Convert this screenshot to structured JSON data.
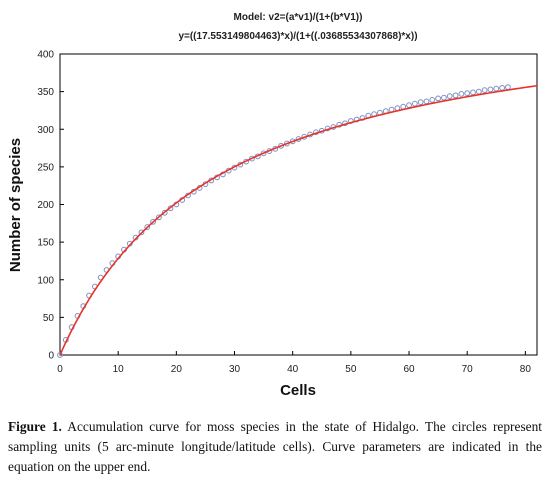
{
  "chart_data": {
    "type": "scatter",
    "title": "Model: v2=(a*v1)/(1+(b*V1))",
    "subtitle": "y=((17.553149804463)*x)/(1+((.03685534307868)*x))",
    "xlabel": "Cells",
    "ylabel": "Number of species",
    "xlim": [
      0,
      82
    ],
    "ylim": [
      0,
      400
    ],
    "xticks": [
      "0",
      "10",
      "20",
      "30",
      "40",
      "50",
      "60",
      "70",
      "80"
    ],
    "yticks": [
      "0",
      "50",
      "100",
      "150",
      "200",
      "250",
      "300",
      "350",
      "400"
    ],
    "grid": false,
    "legend": "none",
    "series": [
      {
        "kind": "points",
        "marker": "open-circle",
        "color": "#7b8fc0",
        "x": [
          0,
          1,
          2,
          3,
          4,
          5,
          6,
          7,
          8,
          9,
          10,
          11,
          12,
          13,
          14,
          15,
          16,
          17,
          18,
          19,
          20,
          21,
          22,
          23,
          24,
          25,
          26,
          27,
          28,
          29,
          30,
          31,
          32,
          33,
          34,
          35,
          36,
          37,
          38,
          39,
          40,
          41,
          42,
          43,
          44,
          45,
          46,
          47,
          48,
          49,
          50,
          51,
          52,
          53,
          54,
          55,
          56,
          57,
          58,
          59,
          60,
          61,
          62,
          63,
          64,
          65,
          66,
          67,
          68,
          69,
          70,
          71,
          72,
          73,
          74,
          75,
          76,
          77
        ],
        "y": [
          0,
          20,
          37,
          52,
          65,
          79,
          91,
          103,
          113,
          122,
          131,
          140,
          148,
          156,
          163,
          170,
          177,
          183,
          189,
          195,
          200,
          206,
          212,
          217,
          222,
          227,
          232,
          236,
          240,
          245,
          249,
          253,
          257,
          261,
          264,
          268,
          271,
          274,
          278,
          281,
          284,
          287,
          290,
          293,
          296,
          298,
          301,
          303,
          306,
          308,
          311,
          313,
          315,
          318,
          320,
          322,
          324,
          326,
          328,
          330,
          332,
          334,
          336,
          337,
          339,
          341,
          342,
          344,
          345,
          347,
          348,
          349,
          350,
          352,
          353,
          354,
          355,
          356
        ]
      },
      {
        "kind": "fitted-curve",
        "color": "#e8332a",
        "model": {
          "a": 17.553149804463,
          "b": 0.03685534307868
        }
      }
    ]
  },
  "caption": {
    "label": "Figure 1.",
    "text": " Accumulation curve for moss species in the state of Hidalgo. The circles represent sampling units (5 arc-minute longitude/latitude cells). Curve parameters are indicated in the equation on the upper end."
  }
}
